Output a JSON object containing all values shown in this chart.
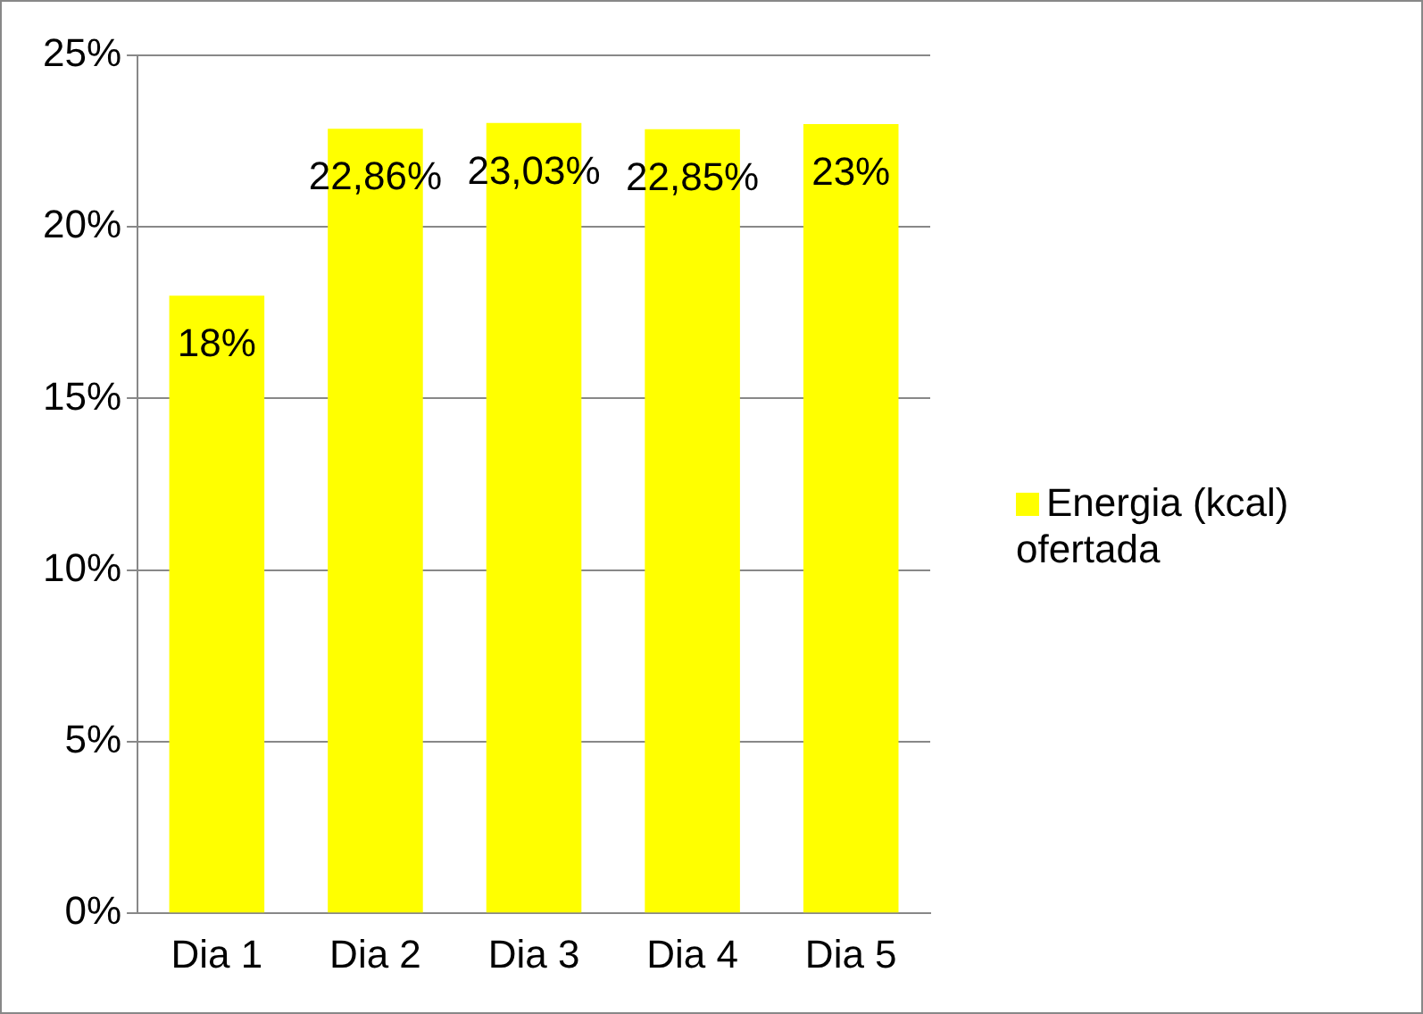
{
  "chart_data": {
    "type": "bar",
    "categories": [
      "Dia 1",
      "Dia 2",
      "Dia 3",
      "Dia 4",
      "Dia 5"
    ],
    "series": [
      {
        "name": "Energia (kcal) ofertada",
        "color": "#ffff00",
        "values": [
          18,
          22.86,
          23.03,
          22.85,
          23
        ],
        "value_labels": [
          "18%",
          "22,86%",
          "23,03%",
          "22,85%",
          "23%"
        ]
      }
    ],
    "ylim": [
      0,
      25
    ],
    "yticks": [
      {
        "value": 0,
        "label": "0%"
      },
      {
        "value": 5,
        "label": "5%"
      },
      {
        "value": 10,
        "label": "10%"
      },
      {
        "value": 15,
        "label": "15%"
      },
      {
        "value": 20,
        "label": "20%"
      },
      {
        "value": 25,
        "label": "25%"
      }
    ],
    "grid": "y",
    "legend": "right"
  }
}
